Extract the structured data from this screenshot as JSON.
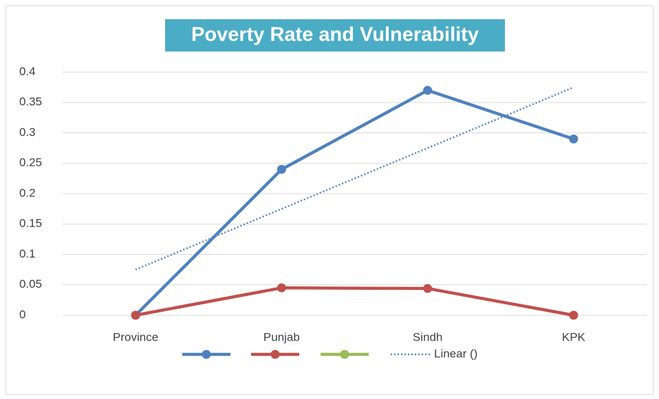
{
  "chart_data": {
    "type": "line",
    "title": "Poverty Rate and Vulnerability",
    "categories": [
      "Province",
      "Punjab",
      "Sindh",
      "KPK"
    ],
    "series": [
      {
        "color": "#4f81bd",
        "values": [
          0,
          0.24,
          0.37,
          0.29
        ]
      },
      {
        "color": "#c0504d",
        "values": [
          0,
          0.045,
          0.044,
          0
        ]
      },
      {
        "color": "#9bbb59",
        "values": [
          null,
          null,
          null,
          null
        ]
      },
      {
        "name": "Linear ()",
        "color": "#4f81bd",
        "style": "dotted",
        "values": [
          0.075,
          0.175,
          0.275,
          0.375
        ]
      }
    ],
    "ylim": [
      0,
      0.4
    ],
    "yticks": [
      0,
      0.05,
      0.1,
      0.15,
      0.2,
      0.25,
      0.3,
      0.35,
      0.4
    ],
    "grid": true,
    "legend": "bottom"
  }
}
